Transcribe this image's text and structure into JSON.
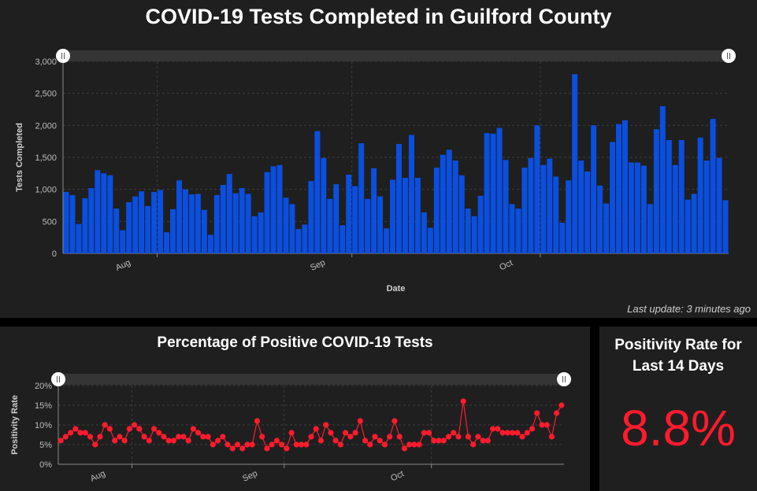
{
  "top_panel": {
    "title": "COVID-19 Tests Completed in Guilford County",
    "last_update": "Last update: 3 minutes ago"
  },
  "positivity_panel": {
    "title": "Percentage of Positive COVID-19 Tests"
  },
  "rate_panel": {
    "title_line1": "Positivity Rate for",
    "title_line2": "Last 14 Days",
    "value": "8.8%"
  },
  "colors": {
    "bar": "#0a4fe0",
    "positivity": "#ff1b2d",
    "panel_bg": "#1f1f1f"
  },
  "chart_data": [
    {
      "type": "bar",
      "title": "COVID-19 Tests Completed in Guilford County",
      "xlabel": "Date",
      "ylabel": "Tests Completed",
      "ylim": [
        0,
        3000
      ],
      "yticks": [
        0,
        500,
        1000,
        1500,
        2000,
        2500,
        3000
      ],
      "ytick_labels": [
        "0",
        "500",
        "1,000",
        "1,500",
        "2,000",
        "2,500",
        "3,000"
      ],
      "xtick_labels": [
        {
          "label": "Aug",
          "index": 15
        },
        {
          "label": "Sep",
          "index": 46
        },
        {
          "label": "Oct",
          "index": 76
        }
      ],
      "grid": true,
      "values": [
        960,
        910,
        460,
        860,
        1020,
        1300,
        1250,
        1220,
        700,
        360,
        800,
        890,
        970,
        740,
        960,
        990,
        330,
        690,
        1140,
        1000,
        920,
        930,
        680,
        290,
        910,
        1070,
        1240,
        940,
        1020,
        930,
        580,
        640,
        1270,
        1360,
        1380,
        870,
        770,
        380,
        450,
        1130,
        1910,
        1490,
        850,
        1080,
        440,
        1230,
        1050,
        1720,
        850,
        1330,
        890,
        390,
        1150,
        1710,
        1180,
        1850,
        1180,
        640,
        400,
        1340,
        1540,
        1620,
        1450,
        1220,
        700,
        580,
        900,
        1880,
        1870,
        1960,
        1460,
        770,
        700,
        1340,
        1490,
        2000,
        1380,
        1480,
        1200,
        480,
        1140,
        2800,
        1450,
        1280,
        2000,
        1060,
        780,
        1740,
        2020,
        2080,
        1420,
        1420,
        1370,
        770,
        1940,
        2300,
        1770,
        1380,
        1770,
        840,
        930,
        1810,
        1450,
        2100,
        1490,
        830
      ]
    },
    {
      "type": "line",
      "title": "Percentage of Positive COVID-19 Tests",
      "xlabel": "",
      "ylabel": "Positivity Rate",
      "ylim": [
        0,
        20
      ],
      "yticks": [
        0,
        5,
        10,
        15,
        20
      ],
      "ytick_labels": [
        "0%",
        "5%",
        "10%",
        "15%",
        "20%"
      ],
      "xtick_labels": [
        {
          "label": "Aug",
          "index": 15
        },
        {
          "label": "Sep",
          "index": 46
        },
        {
          "label": "Oct",
          "index": 76
        }
      ],
      "grid": true,
      "values": [
        6,
        7,
        8,
        9,
        8,
        8,
        7,
        5,
        7,
        10,
        9,
        6,
        7,
        6,
        9,
        10,
        9,
        7,
        6,
        9,
        8,
        7,
        6,
        6,
        7,
        7,
        6,
        9,
        8,
        7,
        7,
        5,
        6,
        7,
        5,
        4,
        5,
        4,
        5,
        5,
        11,
        7,
        4,
        5,
        6,
        5,
        4,
        8,
        5,
        5,
        5,
        7,
        9,
        6,
        10,
        8,
        6,
        5,
        8,
        7,
        8,
        11,
        6,
        5,
        7,
        6,
        5,
        7,
        11,
        7,
        4,
        5,
        5,
        5,
        8,
        8,
        6,
        6,
        6,
        7,
        8,
        7,
        16,
        7,
        5,
        7,
        6,
        6,
        9,
        9,
        8,
        8,
        8,
        8,
        7,
        8,
        9,
        13,
        10,
        10,
        7,
        13,
        15
      ]
    }
  ]
}
